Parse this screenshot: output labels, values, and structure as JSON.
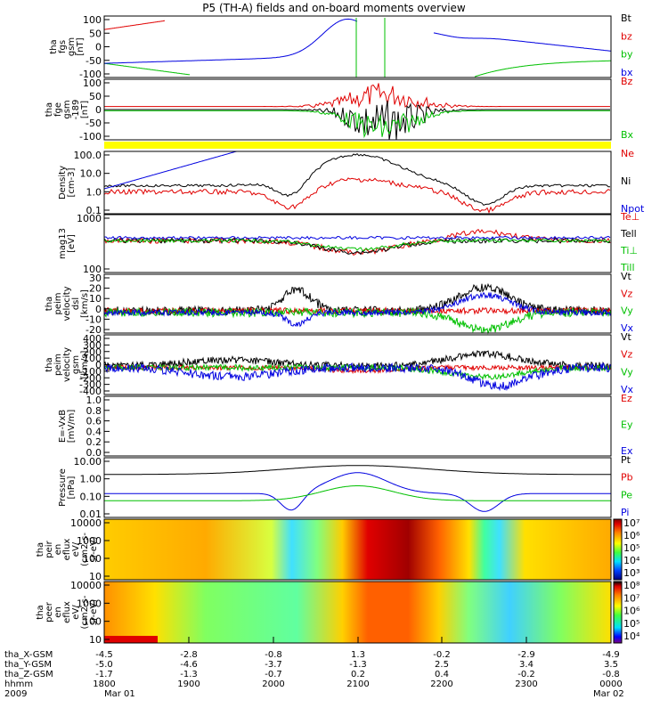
{
  "title": "P5 (TH-A) fields and on-board moments overview",
  "colors": {
    "black": "#000000",
    "red": "#e00000",
    "green": "#00c000",
    "blue": "#0000e0",
    "yellow": "#ffff00"
  },
  "chart_data": [
    {
      "type": "line",
      "ylabel": [
        "tha",
        "fgs",
        "gsm",
        "[nT]"
      ],
      "yticks": [
        "100",
        "50",
        "0",
        "-50",
        "-100"
      ],
      "ylim": [
        -100,
        115
      ],
      "legend": [
        {
          "name": "Bt",
          "color": "black"
        },
        {
          "name": "bz",
          "color": "red"
        },
        {
          "name": "by",
          "color": "green"
        },
        {
          "name": "bx",
          "color": "blue"
        }
      ]
    },
    {
      "type": "line",
      "ylabel": [
        "tha",
        "fge",
        "gsm",
        "-189",
        "[nT]"
      ],
      "yticks": [
        "100",
        "50",
        "0",
        "-50",
        "-100"
      ],
      "ylim": [
        -125,
        115
      ],
      "legend": [
        {
          "name": "Bz",
          "color": "red"
        },
        {
          "name": "Bx",
          "color": "green"
        }
      ]
    },
    {
      "type": "line",
      "ylabel": [
        "Density",
        "[cm-3]"
      ],
      "yticks": [
        "100.0",
        "10.0",
        "1.0",
        "0.1"
      ],
      "log": true,
      "legend": [
        {
          "name": "Ne",
          "color": "red"
        },
        {
          "name": "Ni",
          "color": "black"
        },
        {
          "name": "Npot",
          "color": "blue"
        }
      ]
    },
    {
      "type": "line",
      "ylabel": [
        "mag13",
        "[eV]"
      ],
      "yticks": [
        "1000",
        "100"
      ],
      "log": true,
      "legend": [
        {
          "name": "Te⊥",
          "color": "red"
        },
        {
          "name": "Tell",
          "color": "black"
        },
        {
          "name": "Ti⊥",
          "color": "green"
        },
        {
          "name": "Till",
          "color": "green"
        }
      ]
    },
    {
      "type": "line",
      "ylabel": [
        "tha",
        "peim",
        "velocity",
        "dsl",
        "[km/s]"
      ],
      "yticks": [
        "30",
        "20",
        "10",
        "0",
        "-10",
        "-20"
      ],
      "ylim": [
        -25,
        32
      ],
      "legend": [
        {
          "name": "Vt",
          "color": "black"
        },
        {
          "name": "Vz",
          "color": "red"
        },
        {
          "name": "Vy",
          "color": "green"
        },
        {
          "name": "Vx",
          "color": "blue"
        }
      ]
    },
    {
      "type": "line",
      "ylabel": [
        "tha",
        "peim",
        "velocity",
        "gsm",
        "[km/s]"
      ],
      "yticks": [
        "400",
        "300",
        "200",
        "100",
        "0",
        "-100",
        "-200",
        "-300",
        "-400"
      ],
      "ylim": [
        -450,
        420
      ],
      "legend": [
        {
          "name": "Vt",
          "color": "black"
        },
        {
          "name": "Vz",
          "color": "red"
        },
        {
          "name": "Vy",
          "color": "green"
        },
        {
          "name": "Vx",
          "color": "blue"
        }
      ]
    },
    {
      "type": "line",
      "ylabel": [
        "E=-VxB",
        "[mV/m]"
      ],
      "yticks": [
        "1.0",
        "0.8",
        "0.6",
        "0.4",
        "0.2",
        "0.0"
      ],
      "ylim": [
        0,
        1
      ],
      "legend": [
        {
          "name": "Ez",
          "color": "red"
        },
        {
          "name": "Ey",
          "color": "green"
        },
        {
          "name": "Ex",
          "color": "blue"
        }
      ]
    },
    {
      "type": "line",
      "ylabel": [
        "Pressure",
        "[nPa]"
      ],
      "yticks": [
        "10.00",
        "1.00",
        "0.10",
        "0.01"
      ],
      "log": true,
      "legend": [
        {
          "name": "Pt",
          "color": "black"
        },
        {
          "name": "Pb",
          "color": "red"
        },
        {
          "name": "Pe",
          "color": "green"
        },
        {
          "name": "Pi",
          "color": "blue"
        }
      ]
    },
    {
      "type": "heatmap",
      "ylabel": [
        "tha",
        "peir",
        "en",
        "eflux",
        "eV/",
        "(cm2-s-",
        "sr-eV)"
      ],
      "yticks": [
        "10000",
        "1000",
        "100",
        "10"
      ],
      "colorbar_ticks": [
        "10⁷",
        "10⁶",
        "10⁵",
        "10⁴",
        "10³"
      ]
    },
    {
      "type": "heatmap",
      "ylabel": [
        "tha",
        "peer",
        "en",
        "eflux",
        "eV/",
        "(cm2-s-",
        "sr-eV)"
      ],
      "yticks": [
        "10000",
        "1000",
        "100",
        "10"
      ],
      "colorbar_ticks": [
        "10⁸",
        "10⁷",
        "10⁶",
        "10⁵",
        "10⁴"
      ]
    }
  ],
  "xaxis": {
    "row_labels": [
      "tha_X-GSM",
      "tha_Y-GSM",
      "tha_Z-GSM",
      "hhmm",
      "2009"
    ],
    "columns": [
      [
        "-4.5",
        "-5.0",
        "-1.7",
        "1800",
        "Mar 01"
      ],
      [
        "-2.8",
        "-4.6",
        "-1.3",
        "1900",
        ""
      ],
      [
        "-0.8",
        "-3.7",
        "-0.7",
        "2000",
        ""
      ],
      [
        "1.3",
        "-1.3",
        "0.2",
        "2100",
        ""
      ],
      [
        "-0.2",
        "2.5",
        "0.4",
        "2200",
        ""
      ],
      [
        "-2.9",
        "3.4",
        "-0.2",
        "2300",
        ""
      ],
      [
        "-4.9",
        "3.5",
        "-0.8",
        "0000",
        "Mar 02"
      ]
    ]
  }
}
